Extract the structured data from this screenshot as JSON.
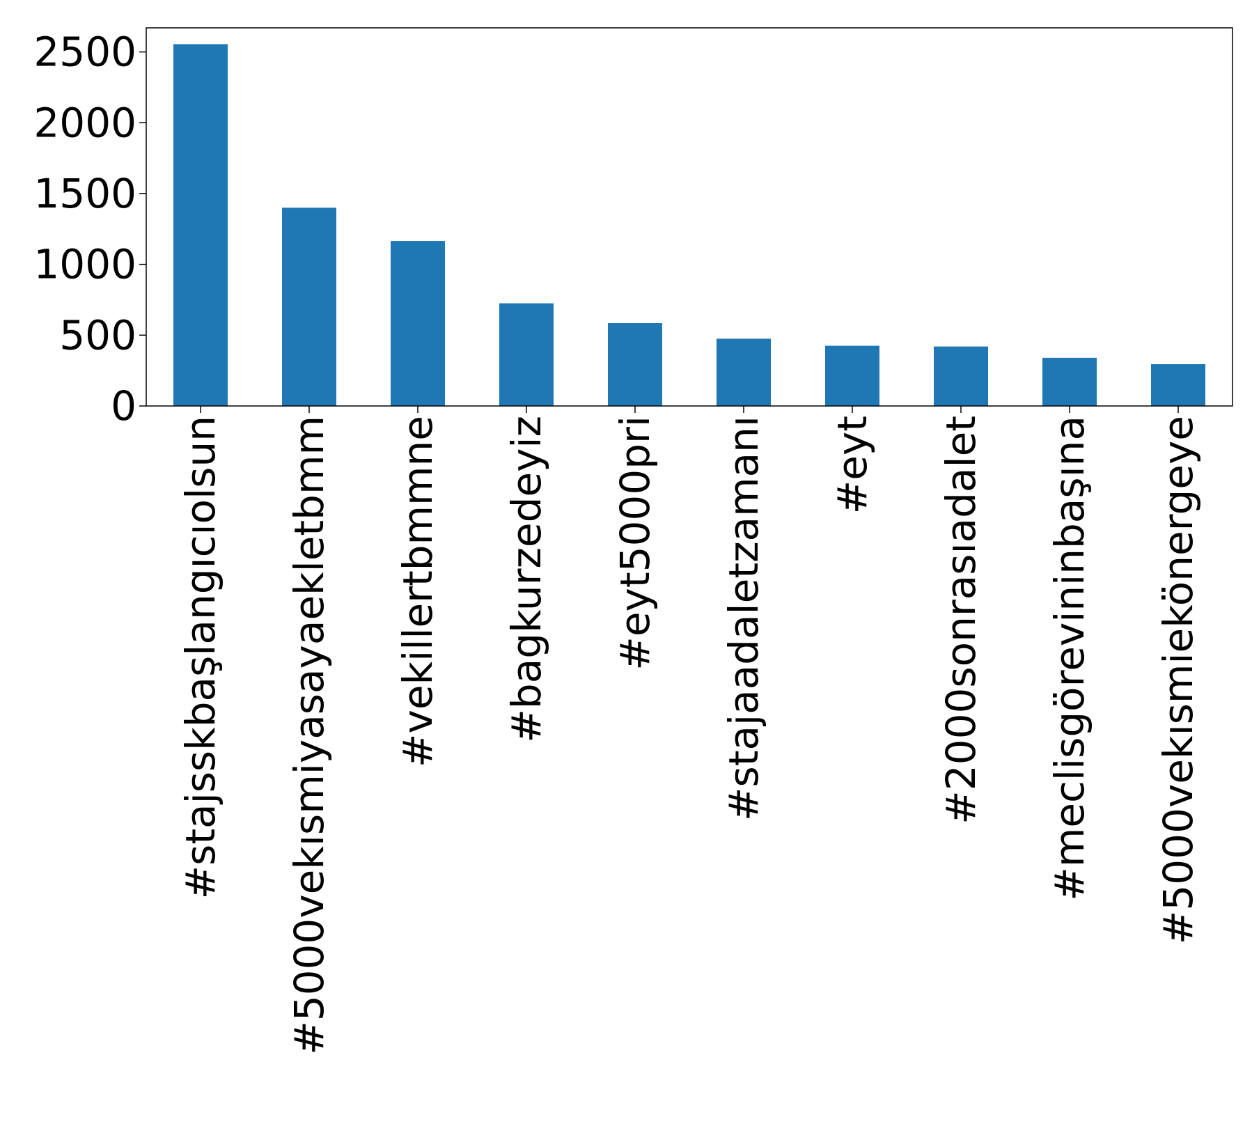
{
  "chart_data": {
    "type": "bar",
    "title": "",
    "xlabel": "",
    "ylabel": "",
    "categories": [
      "#stajsskbaşlangıcıolsun",
      "#5000vekısmiyasayaekletbmm",
      "#vekillertbmmne",
      "#bagkurzedeyiz",
      "#eyt5000pri",
      "#stajaadaletzamanı",
      "#eyt",
      "#2000sonrasıadalet",
      "#meclisgörevininbaşına",
      "#5000vekısmiekönergeye"
    ],
    "values": [
      2555,
      1400,
      1165,
      725,
      585,
      475,
      425,
      420,
      340,
      295
    ],
    "ylim": [
      0,
      2670
    ],
    "yticks": [
      0,
      500,
      1000,
      1500,
      2000,
      2500
    ],
    "ytick_labels": [
      "0",
      "500",
      "1000",
      "1500",
      "2000",
      "2500"
    ],
    "grid": false,
    "legend": "none",
    "bar_color": "#1f77b4"
  }
}
